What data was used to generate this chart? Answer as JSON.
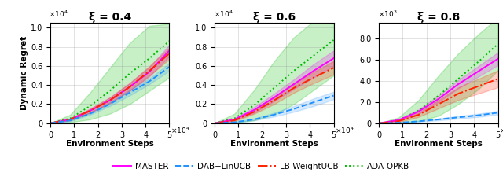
{
  "titles": [
    "ξ = 0.4",
    "ξ = 0.6",
    "ξ = 0.8"
  ],
  "xlabel": "Environment Steps",
  "ylabel": "Dynamic Regret",
  "n_steps": 50000,
  "subplots": [
    {
      "yscale": 10000,
      "yscale_exp": 4,
      "ylim": 1.05,
      "yticks": [
        0.0,
        0.2,
        0.4,
        0.6,
        0.8,
        1.0
      ],
      "master_mean": [
        0,
        0.04,
        0.13,
        0.24,
        0.38,
        0.54,
        0.76
      ],
      "master_lo": [
        0,
        0.03,
        0.11,
        0.21,
        0.34,
        0.49,
        0.7
      ],
      "master_hi": [
        0,
        0.05,
        0.15,
        0.27,
        0.42,
        0.59,
        0.82
      ],
      "dab_mean": [
        0,
        0.03,
        0.1,
        0.2,
        0.32,
        0.44,
        0.59
      ],
      "dab_lo": [
        0,
        0.02,
        0.09,
        0.18,
        0.29,
        0.41,
        0.55
      ],
      "dab_hi": [
        0,
        0.04,
        0.11,
        0.22,
        0.35,
        0.47,
        0.63
      ],
      "lb_mean": [
        0,
        0.04,
        0.13,
        0.24,
        0.38,
        0.55,
        0.73
      ],
      "lb_lo": [
        0,
        0.03,
        0.11,
        0.21,
        0.34,
        0.5,
        0.67
      ],
      "lb_hi": [
        0,
        0.05,
        0.15,
        0.27,
        0.42,
        0.6,
        0.79
      ],
      "ada_mean": [
        0,
        0.05,
        0.18,
        0.34,
        0.52,
        0.68,
        0.86
      ],
      "ada_lo": [
        0,
        0.01,
        0.04,
        0.1,
        0.2,
        0.34,
        0.48
      ],
      "ada_hi": [
        0,
        0.09,
        0.32,
        0.58,
        0.84,
        1.02,
        1.04
      ]
    },
    {
      "yscale": 10000,
      "yscale_exp": 4,
      "ylim": 1.05,
      "yticks": [
        0.0,
        0.2,
        0.4,
        0.6,
        0.8,
        1.0
      ],
      "master_mean": [
        0,
        0.04,
        0.14,
        0.27,
        0.41,
        0.55,
        0.68
      ],
      "master_lo": [
        0,
        0.03,
        0.11,
        0.23,
        0.36,
        0.48,
        0.6
      ],
      "master_hi": [
        0,
        0.05,
        0.17,
        0.31,
        0.46,
        0.62,
        0.76
      ],
      "dab_mean": [
        0,
        0.01,
        0.04,
        0.09,
        0.15,
        0.22,
        0.29
      ],
      "dab_lo": [
        0,
        0.005,
        0.03,
        0.07,
        0.12,
        0.18,
        0.25
      ],
      "dab_hi": [
        0,
        0.015,
        0.05,
        0.11,
        0.18,
        0.26,
        0.33
      ],
      "lb_mean": [
        0,
        0.03,
        0.12,
        0.24,
        0.37,
        0.48,
        0.58
      ],
      "lb_lo": [
        0,
        0.02,
        0.1,
        0.2,
        0.32,
        0.42,
        0.51
      ],
      "lb_hi": [
        0,
        0.04,
        0.14,
        0.28,
        0.42,
        0.54,
        0.65
      ],
      "ada_mean": [
        0,
        0.05,
        0.19,
        0.37,
        0.55,
        0.71,
        0.87
      ],
      "ada_lo": [
        0,
        0.005,
        0.03,
        0.09,
        0.2,
        0.35,
        0.5
      ],
      "ada_hi": [
        0,
        0.1,
        0.35,
        0.65,
        0.9,
        1.07,
        1.04
      ]
    },
    {
      "yscale": 1000,
      "yscale_exp": 3,
      "ylim": 9.5,
      "yticks": [
        0.0,
        2.0,
        4.0,
        6.0,
        8.0
      ],
      "master_mean": [
        0,
        0.3,
        1.1,
        2.3,
        3.7,
        4.9,
        6.1
      ],
      "master_lo": [
        0,
        0.2,
        0.9,
        2.0,
        3.3,
        4.4,
        5.5
      ],
      "master_hi": [
        0,
        0.4,
        1.3,
        2.6,
        4.1,
        5.4,
        6.7
      ],
      "dab_mean": [
        0,
        0.05,
        0.18,
        0.36,
        0.56,
        0.75,
        1.0
      ],
      "dab_lo": [
        0,
        0.03,
        0.13,
        0.27,
        0.44,
        0.6,
        0.83
      ],
      "dab_hi": [
        0,
        0.07,
        0.23,
        0.45,
        0.68,
        0.9,
        1.17
      ],
      "lb_mean": [
        0,
        0.2,
        0.8,
        1.8,
        2.8,
        3.5,
        4.2
      ],
      "lb_lo": [
        0,
        0.1,
        0.6,
        1.4,
        2.2,
        2.8,
        3.4
      ],
      "lb_hi": [
        0,
        0.3,
        1.0,
        2.2,
        3.4,
        4.2,
        5.0
      ],
      "ada_mean": [
        0,
        0.3,
        1.2,
        2.6,
        4.2,
        5.8,
        7.5
      ],
      "ada_lo": [
        0,
        0.05,
        0.2,
        0.7,
        1.8,
        3.2,
        5.0
      ],
      "ada_hi": [
        0,
        0.55,
        2.2,
        4.5,
        6.6,
        8.4,
        10.0
      ]
    }
  ],
  "colors": {
    "master": "#FF00FF",
    "dab": "#1E90FF",
    "lb": "#FF2200",
    "ada": "#00BB00"
  },
  "legend_labels": [
    "MASTER",
    "DAB+LinUCB",
    "LB-WeightUCB",
    "ADA-OPKB"
  ]
}
